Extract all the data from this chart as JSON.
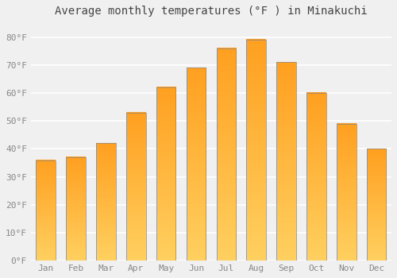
{
  "title": "Average monthly temperatures (°F ) in Minakuchi",
  "months": [
    "Jan",
    "Feb",
    "Mar",
    "Apr",
    "May",
    "Jun",
    "Jul",
    "Aug",
    "Sep",
    "Oct",
    "Nov",
    "Dec"
  ],
  "values": [
    36,
    37,
    42,
    53,
    62,
    69,
    76,
    79,
    71,
    60,
    49,
    40
  ],
  "bar_color": "#FFA500",
  "bar_gradient_bottom": "#FFD060",
  "bar_gradient_top": "#FFA020",
  "bar_edge_color": "#888888",
  "ylim": [
    0,
    85
  ],
  "yticks": [
    0,
    10,
    20,
    30,
    40,
    50,
    60,
    70,
    80
  ],
  "ytick_labels": [
    "0°F",
    "10°F",
    "20°F",
    "30°F",
    "40°F",
    "50°F",
    "60°F",
    "70°F",
    "80°F"
  ],
  "background_color": "#f0f0f0",
  "grid_color": "#ffffff",
  "title_fontsize": 10,
  "tick_fontsize": 8,
  "figsize": [
    5.0,
    3.5
  ],
  "dpi": 100
}
